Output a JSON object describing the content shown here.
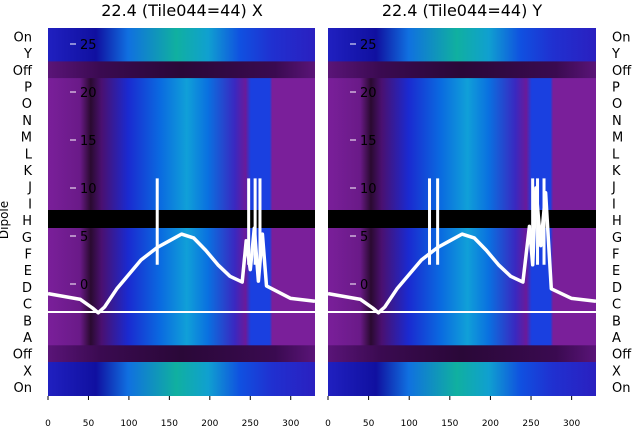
{
  "chart_data": [
    {
      "type": "heatmap",
      "title": "22.4 (Tile044=44) X",
      "ylabel": "Dipole",
      "x_ticks": [
        0,
        50,
        100,
        150,
        200,
        250,
        300
      ],
      "y_inner_ticks": [
        25,
        20,
        15,
        10,
        5,
        0
      ],
      "line_label_rows": [
        "On",
        "Y",
        "Off",
        "P",
        "O",
        "N",
        "M",
        "L",
        "K",
        "J",
        "I",
        "H",
        "G",
        "F",
        "E",
        "D",
        "C",
        "B",
        "A",
        "Off",
        "X",
        "On"
      ],
      "spectrum_line": {
        "x": [
          0,
          20,
          40,
          55,
          62,
          70,
          85,
          100,
          115,
          135,
          150,
          165,
          180,
          195,
          210,
          225,
          240,
          245,
          250,
          255,
          260,
          265,
          270,
          300,
          330
        ],
        "y": [
          -1.0,
          -1.3,
          -1.6,
          -2.5,
          -3.0,
          -2.4,
          -0.5,
          1.0,
          2.5,
          3.8,
          4.5,
          5.2,
          4.8,
          3.5,
          2.0,
          0.8,
          0.2,
          4.5,
          1.5,
          5.8,
          0.3,
          5.2,
          -0.2,
          -1.5,
          -1.8
        ]
      },
      "spike_x": [
        135,
        248,
        256,
        262
      ],
      "xlim": [
        0,
        330
      ],
      "ylim": [
        -5,
        27
      ]
    },
    {
      "type": "heatmap",
      "title": "22.4 (Tile044=44) Y",
      "ylabel": "",
      "x_ticks": [
        0,
        50,
        100,
        150,
        200,
        250,
        300
      ],
      "y_inner_ticks": [
        25,
        20,
        15,
        10,
        5,
        0
      ],
      "line_label_rows": [
        "On",
        "Y",
        "Off",
        "P",
        "O",
        "N",
        "M",
        "L",
        "K",
        "J",
        "I",
        "H",
        "G",
        "F",
        "E",
        "D",
        "C",
        "B",
        "A",
        "Off",
        "X",
        "On"
      ],
      "spectrum_line": {
        "x": [
          0,
          20,
          40,
          55,
          62,
          70,
          85,
          100,
          115,
          135,
          150,
          165,
          180,
          195,
          210,
          225,
          240,
          248,
          252,
          256,
          262,
          268,
          275,
          300,
          330
        ],
        "y": [
          -1.0,
          -1.3,
          -1.6,
          -2.5,
          -3.0,
          -2.4,
          -0.5,
          1.0,
          2.5,
          3.8,
          4.5,
          5.2,
          4.8,
          3.5,
          2.0,
          0.8,
          0.2,
          6.0,
          2.0,
          10.0,
          4.0,
          9.5,
          -0.5,
          -1.5,
          -1.8
        ]
      },
      "spike_x": [
        125,
        135,
        252,
        258,
        266
      ],
      "xlim": [
        0,
        330
      ],
      "ylim": [
        -5,
        27
      ]
    }
  ]
}
